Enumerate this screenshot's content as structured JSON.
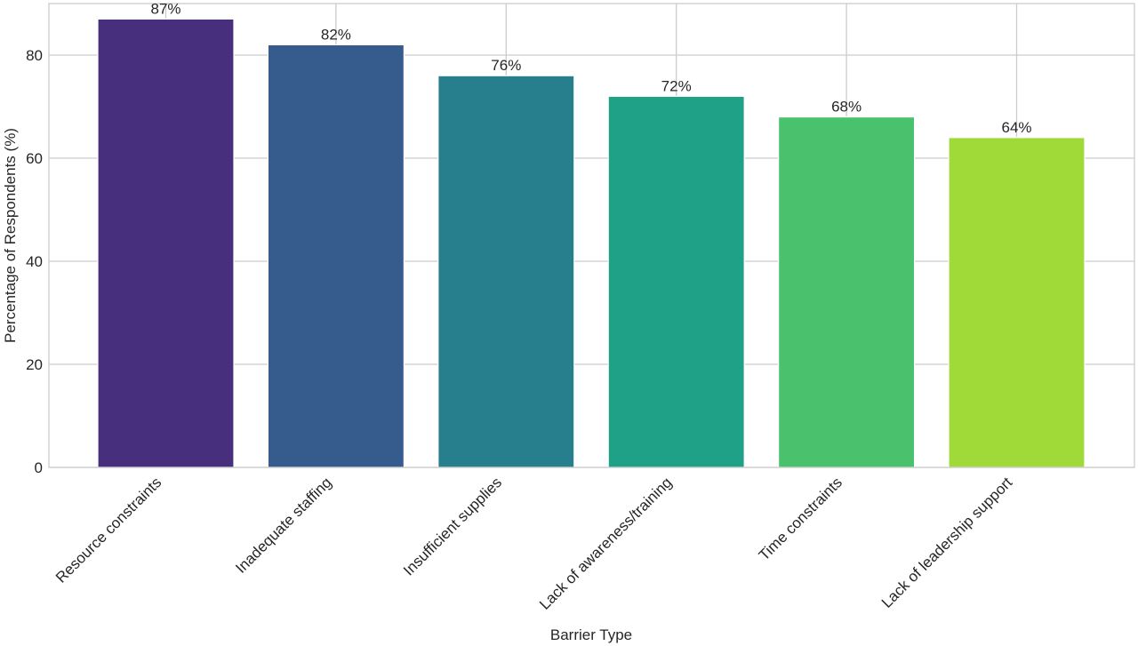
{
  "chart_data": {
    "type": "bar",
    "title": "",
    "xlabel": "Barrier Type",
    "ylabel": "Percentage of Respondents (%)",
    "categories": [
      "Resource constraints",
      "Inadequate staffing",
      "Insufficient supplies",
      "Lack of awareness/training",
      "Time constraints",
      "Lack of leadership support"
    ],
    "values": [
      87,
      82,
      76,
      72,
      68,
      64
    ],
    "value_labels": [
      "87%",
      "82%",
      "76%",
      "72%",
      "68%",
      "64%"
    ],
    "colors": [
      "#472f7d",
      "#365c8d",
      "#277f8e",
      "#1fa187",
      "#4ac16d",
      "#a0da39"
    ],
    "ylim": [
      0,
      90
    ],
    "yticks": [
      0,
      20,
      40,
      60,
      80
    ],
    "ytick_labels": [
      "0",
      "20",
      "40",
      "60",
      "80"
    ],
    "grid": true,
    "legend": "none"
  }
}
